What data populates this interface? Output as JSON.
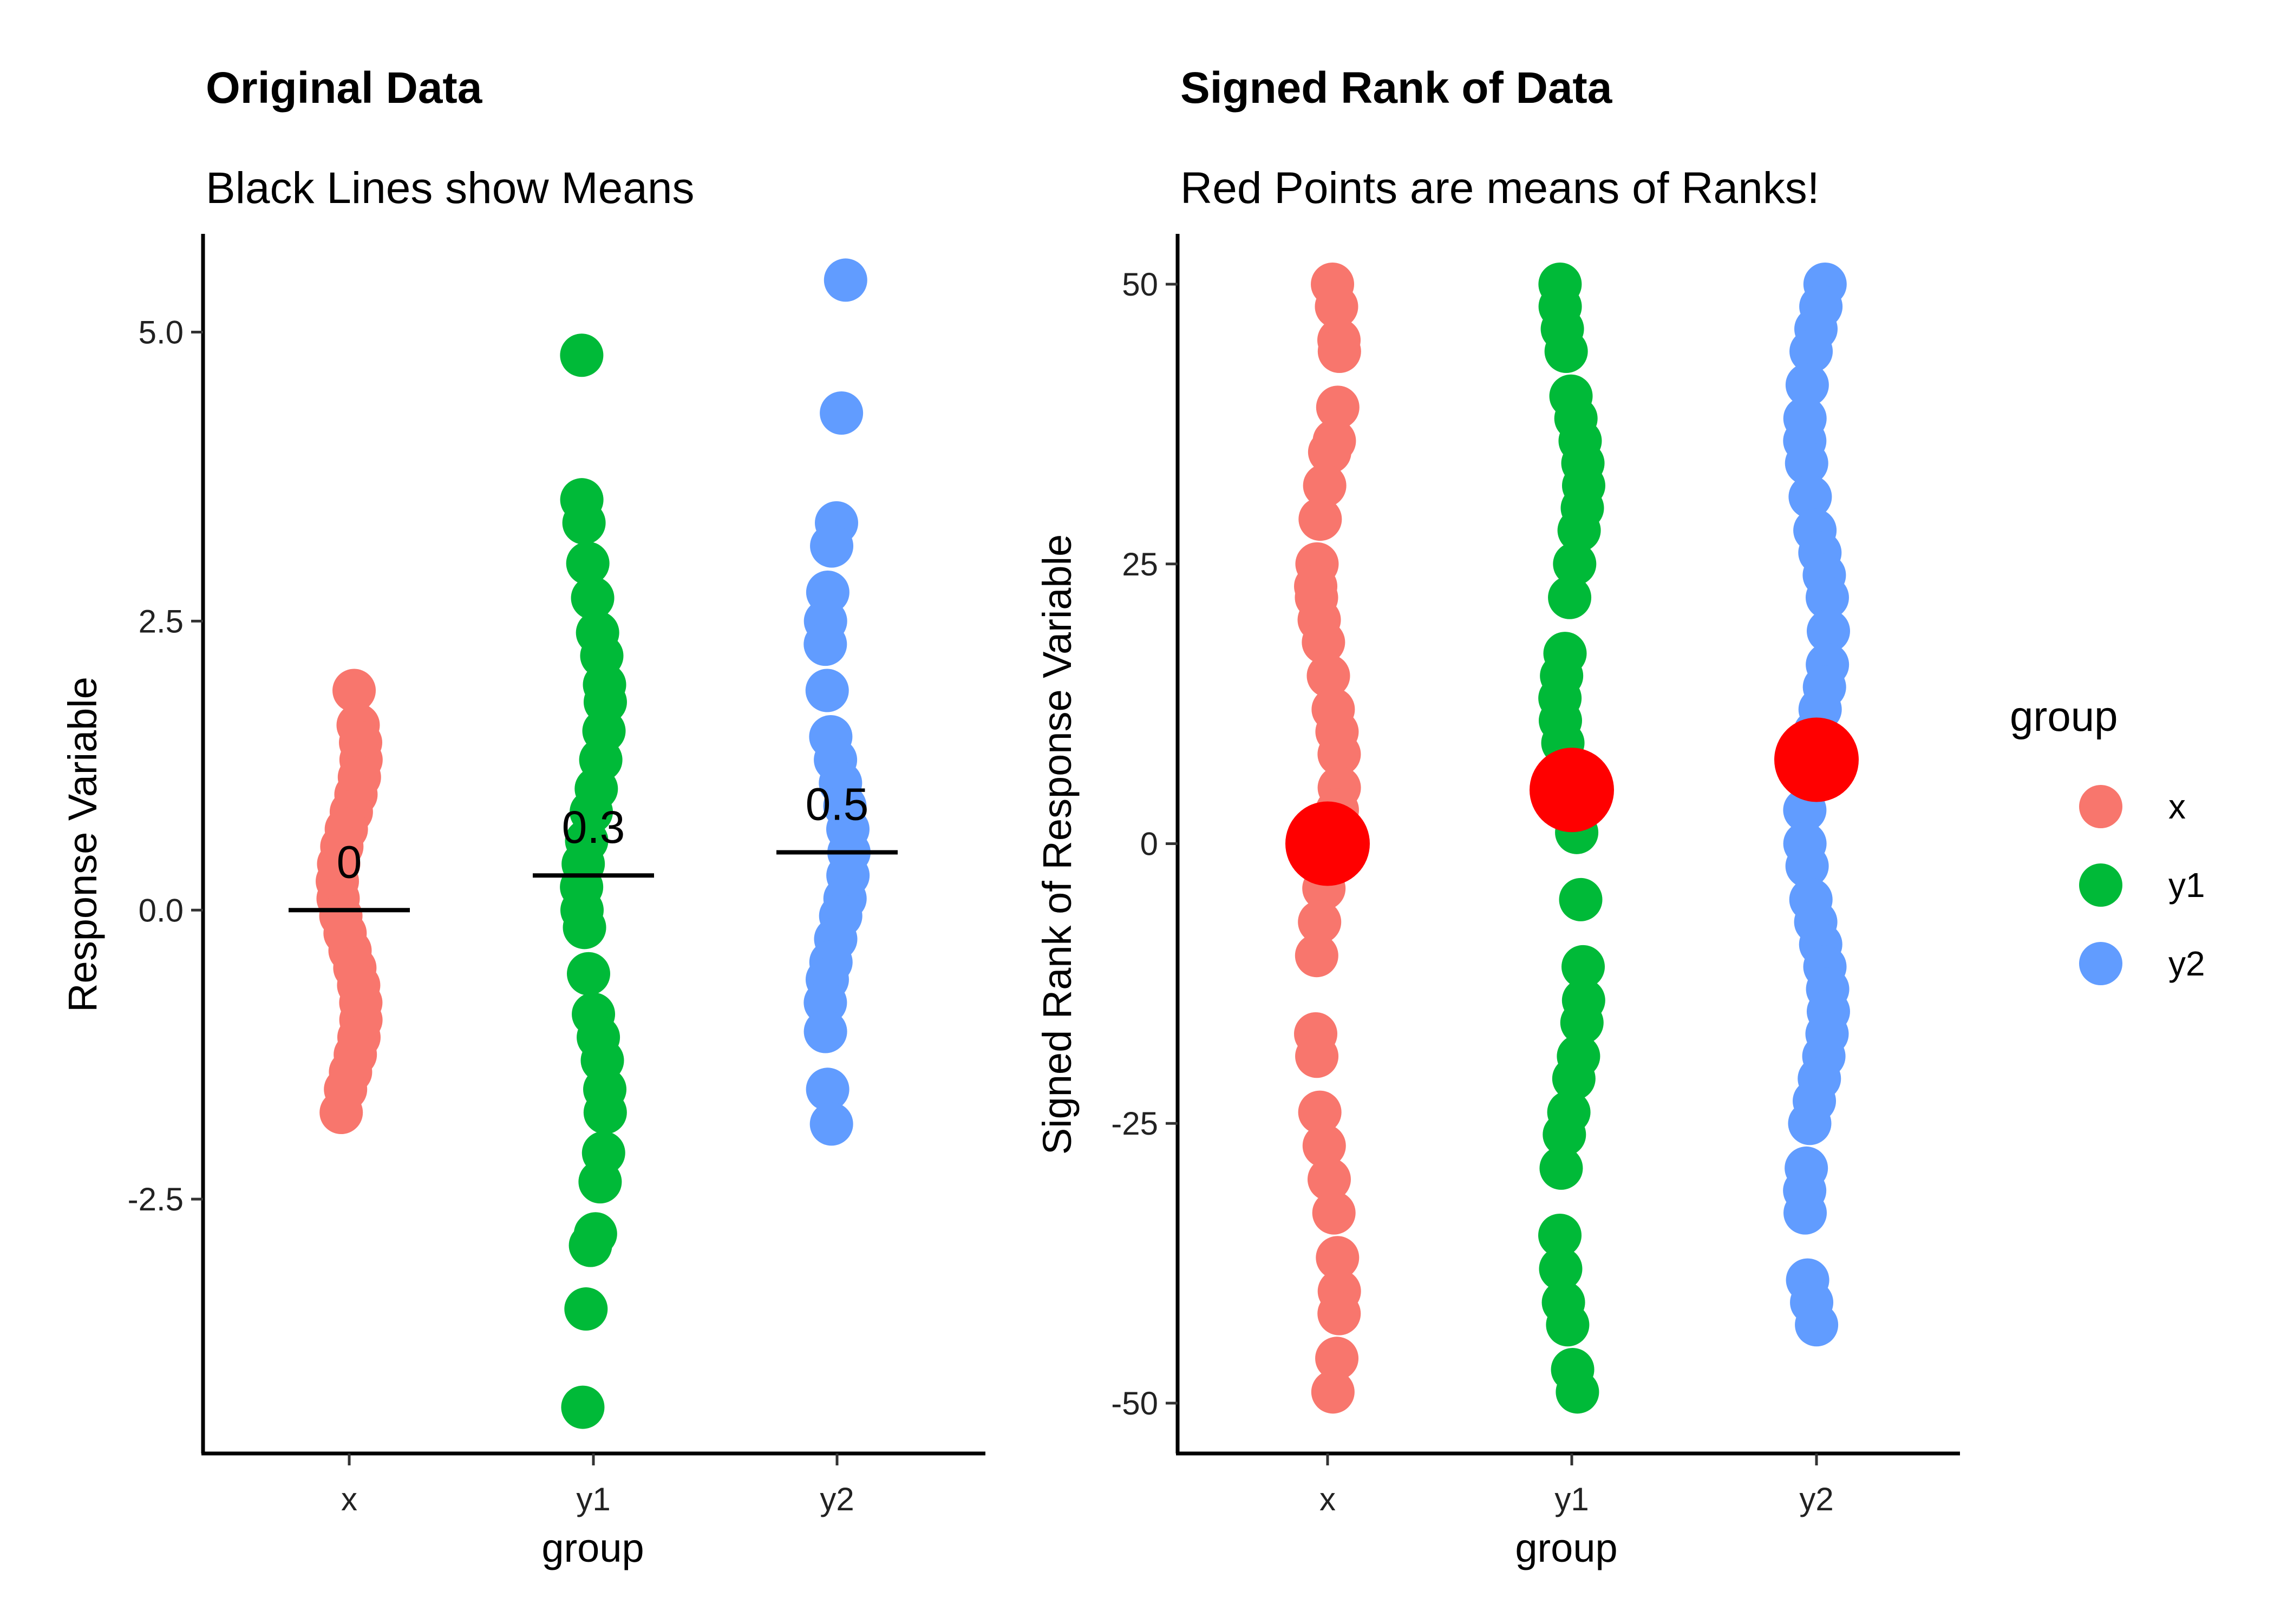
{
  "chart_data": [
    {
      "type": "scatter",
      "title": "Original Data",
      "subtitle": "Black Lines show Means",
      "xlabel": "group",
      "ylabel": "Response Variable",
      "categories": [
        "x",
        "y1",
        "y2"
      ],
      "yticks": [
        5.0,
        2.5,
        0.0,
        -2.5
      ],
      "ytick_labels": [
        "5.0",
        "2.5",
        "0.0",
        "-2.5"
      ],
      "ylim": [
        -4.7,
        5.85
      ],
      "series": [
        {
          "category": "x",
          "color": "#F8766D",
          "values": [
            1.9,
            1.6,
            1.45,
            1.3,
            1.15,
            1.0,
            0.85,
            0.7,
            0.55,
            0.4,
            0.25,
            0.1,
            -0.05,
            -0.2,
            -0.35,
            -0.5,
            -0.65,
            -0.8,
            -0.95,
            -1.1,
            -1.25,
            -1.4,
            -1.55,
            -1.75
          ]
        },
        {
          "category": "y1",
          "color": "#00BA38",
          "values": [
            4.8,
            3.55,
            3.35,
            3.0,
            2.7,
            2.4,
            2.2,
            1.95,
            1.8,
            1.55,
            1.3,
            1.05,
            0.85,
            0.6,
            0.4,
            0.2,
            0.0,
            -0.15,
            -0.55,
            -0.9,
            -1.1,
            -1.3,
            -1.55,
            -1.75,
            -2.1,
            -2.35,
            -2.8,
            -2.9,
            -3.45,
            -4.3
          ]
        },
        {
          "category": "y2",
          "color": "#619CFF",
          "values": [
            5.45,
            4.3,
            3.35,
            3.15,
            2.75,
            2.5,
            2.3,
            1.9,
            1.5,
            1.3,
            1.1,
            0.9,
            0.7,
            0.5,
            0.3,
            0.1,
            -0.05,
            -0.25,
            -0.45,
            -0.6,
            -0.8,
            -1.05,
            -1.55,
            -1.85
          ]
        }
      ],
      "means": [
        {
          "category": "x",
          "value": 0.0,
          "label": "0"
        },
        {
          "category": "y1",
          "value": 0.3,
          "label": "0.3"
        },
        {
          "category": "y2",
          "value": 0.5,
          "label": "0.5"
        }
      ],
      "grid": false
    },
    {
      "type": "scatter",
      "title": "Signed Rank of Data",
      "subtitle": "Red Points are means of Ranks!",
      "xlabel": "group",
      "ylabel": "Signed Rank of Response Variable",
      "categories": [
        "x",
        "y1",
        "y2"
      ],
      "yticks": [
        50,
        25,
        0,
        -25,
        -50
      ],
      "ytick_labels": [
        "50",
        "25",
        "0",
        "-25",
        "-50"
      ],
      "ylim": [
        -54.5,
        54.5
      ],
      "series": [
        {
          "category": "x",
          "color": "#F8766D",
          "values": [
            50,
            48,
            45,
            44,
            39,
            36,
            35,
            32,
            29,
            25,
            23,
            22,
            20,
            18,
            15,
            12,
            10,
            8,
            5,
            3,
            1,
            -1,
            -4,
            -7,
            -10,
            -17,
            -19,
            -24,
            -27,
            -30,
            -33,
            -37,
            -40,
            -42,
            -46,
            -49
          ]
        },
        {
          "category": "y1",
          "color": "#00BA38",
          "values": [
            50,
            48,
            46,
            44,
            40,
            38,
            36,
            34,
            32,
            30,
            28,
            25,
            22,
            17,
            15,
            13,
            11,
            9,
            7,
            3,
            1,
            -5,
            -11,
            -14,
            -16,
            -19,
            -21,
            -24,
            -26,
            -29,
            -35,
            -38,
            -41,
            -43,
            -47,
            -49
          ]
        },
        {
          "category": "y2",
          "color": "#619CFF",
          "values": [
            50,
            48,
            46,
            44,
            41,
            38,
            36,
            34,
            31,
            28,
            26,
            24,
            22,
            19,
            16,
            14,
            12,
            10,
            8,
            6,
            3,
            0,
            -2,
            -5,
            -7,
            -9,
            -11,
            -13,
            -15,
            -17,
            -19,
            -21,
            -23,
            -25,
            -29,
            -31,
            -33,
            -39,
            -41,
            -43
          ]
        }
      ],
      "means": [
        {
          "category": "x",
          "value": 0,
          "color": "#FF0000"
        },
        {
          "category": "y1",
          "value": 4.8,
          "color": "#FF0000"
        },
        {
          "category": "y2",
          "value": 7.5,
          "color": "#FF0000"
        }
      ],
      "grid": false
    }
  ],
  "legend": {
    "title": "group",
    "placement": "right",
    "items": [
      {
        "label": "x",
        "color": "#F8766D"
      },
      {
        "label": "y1",
        "color": "#00BA38"
      },
      {
        "label": "y2",
        "color": "#619CFF"
      }
    ]
  }
}
